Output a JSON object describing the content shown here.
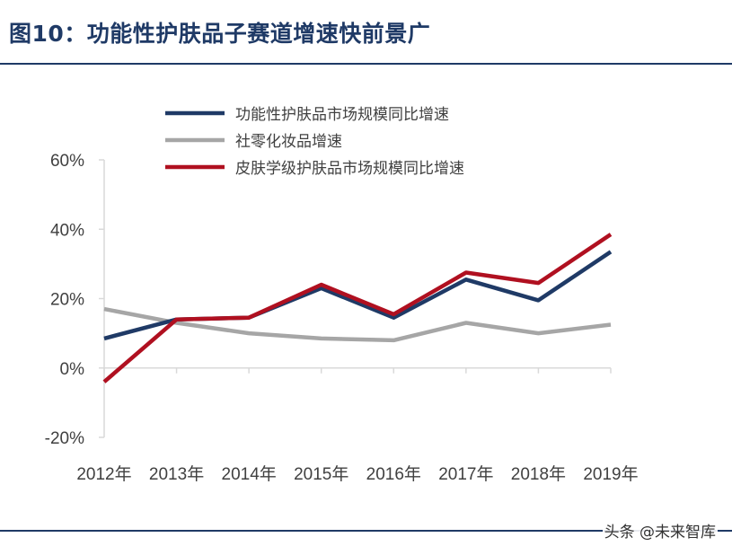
{
  "header": {
    "title": "图10：功能性护肤品子赛道增速快前景广"
  },
  "watermark": "头条 @未来智库",
  "chart_data": {
    "type": "line",
    "categories": [
      "2012年",
      "2013年",
      "2014年",
      "2015年",
      "2016年",
      "2017年",
      "2018年",
      "2019年"
    ],
    "y_ticks": [
      "60%",
      "40%",
      "20%",
      "0%",
      "-20%"
    ],
    "ylim": [
      -20,
      60
    ],
    "legend_position": "top",
    "series": [
      {
        "name": "功能性护肤品市场规模同比增速",
        "color": "#1f3a66",
        "values": [
          8.5,
          14,
          14.5,
          23,
          14.5,
          25.5,
          19.5,
          33.5
        ]
      },
      {
        "name": "社零化妆品增速",
        "color": "#a6a6a6",
        "values": [
          17,
          13,
          10,
          8.5,
          8,
          13,
          10,
          12.5
        ]
      },
      {
        "name": "皮肤学级护肤品市场规模同比增速",
        "color": "#b01020",
        "values": [
          -4,
          14,
          14.5,
          24,
          15.5,
          27.5,
          24.5,
          38.5
        ]
      }
    ]
  }
}
